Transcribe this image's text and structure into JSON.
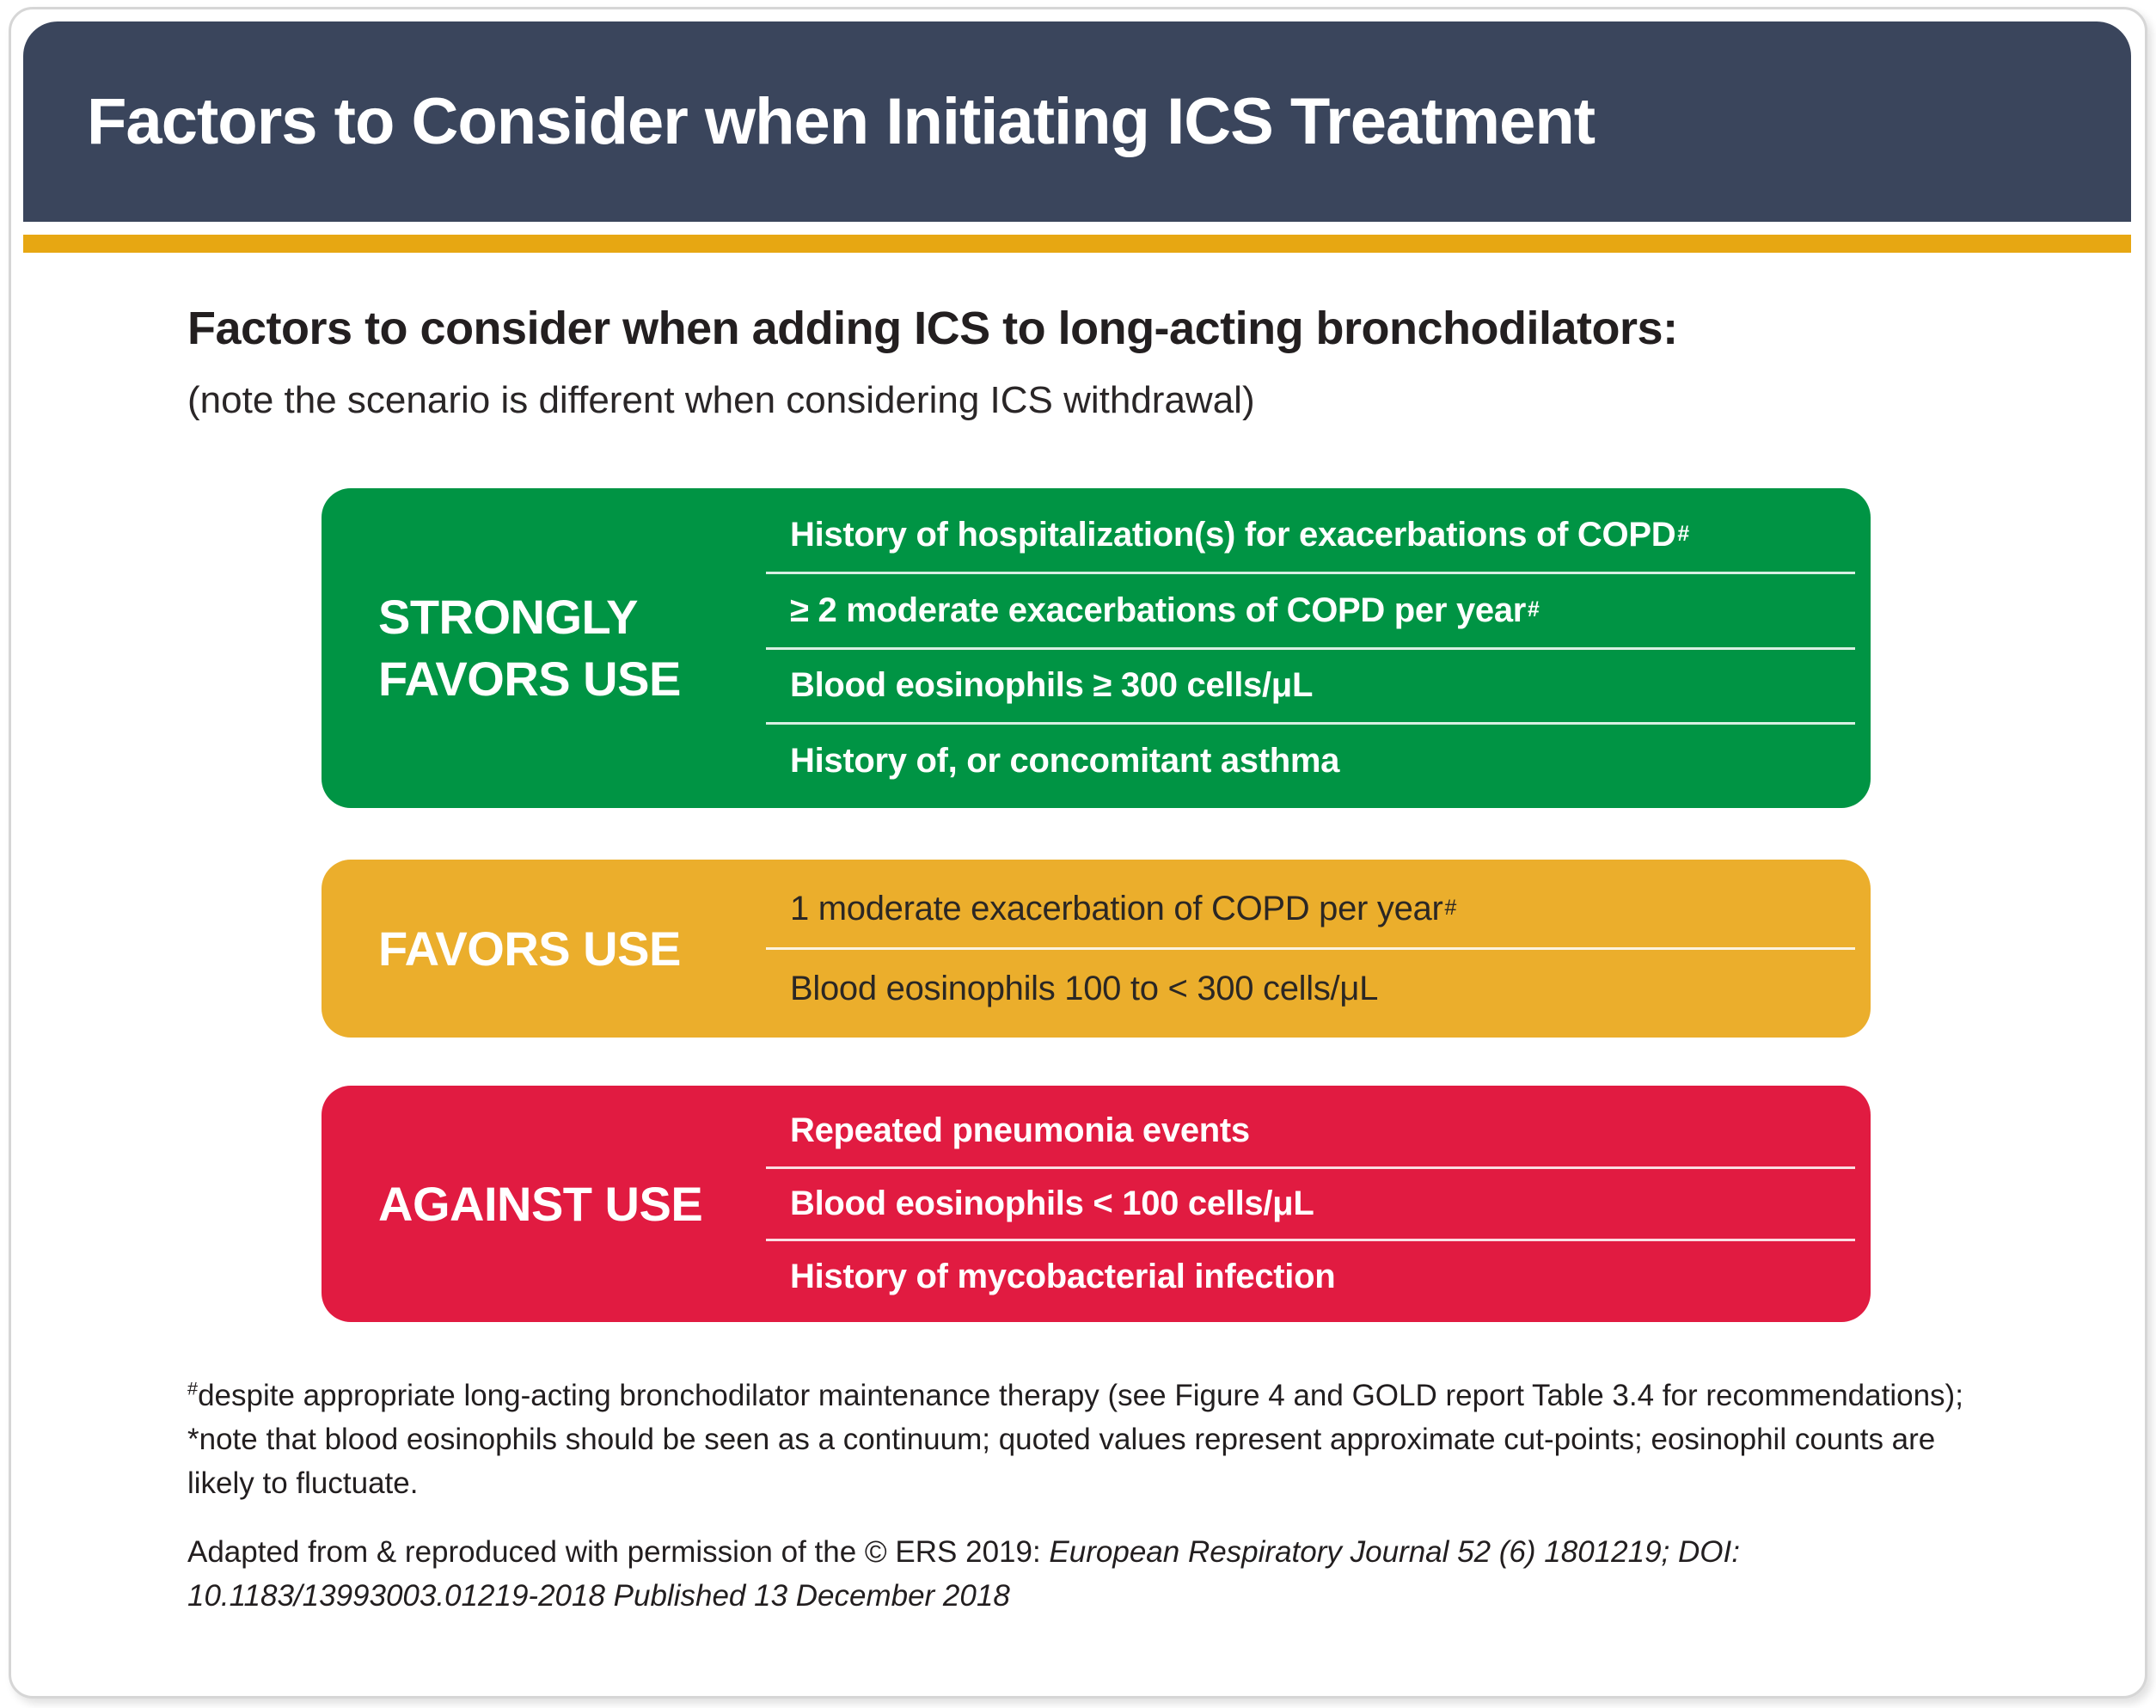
{
  "header": {
    "title": "Factors to Consider when Initiating ICS Treatment"
  },
  "intro": {
    "heading": "Factors to consider when adding ICS to long-acting bronchodilators:",
    "subheading": "(note the scenario is different when considering ICS withdrawal)"
  },
  "boxes": [
    {
      "label": "STRONGLY FAVORS USE",
      "color": "#009444",
      "items": [
        {
          "text": "History of hospitalization(s) for exacerbations of COPD",
          "sup": "#"
        },
        {
          "text": "≥ 2 moderate exacerbations of COPD per year",
          "sup": "#"
        },
        {
          "text": "Blood eosinophils ≥ 300 cells/μL",
          "sup": ""
        },
        {
          "text": "History of, or concomitant asthma",
          "sup": ""
        }
      ]
    },
    {
      "label": "FAVORS USE",
      "color": "#ebae2c",
      "items": [
        {
          "text": "1 moderate exacerbation of COPD per year",
          "sup": "#"
        },
        {
          "text": "Blood eosinophils 100 to < 300 cells/μL",
          "sup": ""
        }
      ]
    },
    {
      "label": "AGAINST USE",
      "color": "#e11b41",
      "items": [
        {
          "text": "Repeated pneumonia events",
          "sup": ""
        },
        {
          "text": "Blood eosinophils < 100 cells/μL",
          "sup": ""
        },
        {
          "text": "History of mycobacterial infection",
          "sup": ""
        }
      ]
    }
  ],
  "footnotes": {
    "note1_sup": "#",
    "note1_text": "despite appropriate long-acting bronchodilator maintenance therapy (see Figure 4 and GOLD report Table 3.4 for recommendations); *note that blood eosinophils should be seen as a continuum; quoted values represent approximate cut-points; eosinophil counts are likely to fluctuate.",
    "note2_prefix": "Adapted from & reproduced with permission of the © ERS 2019: ",
    "note2_italic": "European Respiratory Journal 52 (6) 1801219; DOI: 10.1183/13993003.01219-2018 Published 13 December 2018"
  },
  "colors": {
    "header_navy": "#3a455c",
    "accent_gold": "#e7a712",
    "strongly_favors_green": "#009444",
    "favors_yellow": "#ebae2c",
    "against_red": "#e11b41",
    "card_border": "#d6d6d6",
    "text_dark": "#231f20"
  }
}
